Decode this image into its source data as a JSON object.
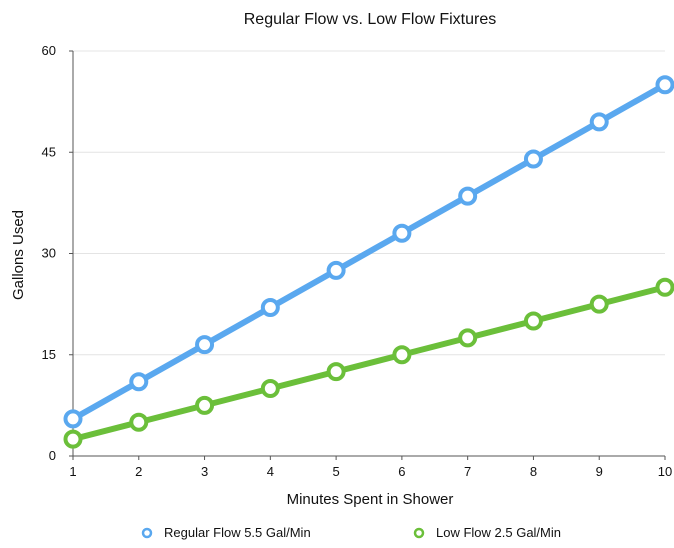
{
  "chart_data": {
    "type": "line",
    "title": "Regular Flow vs. Low Flow Fixtures",
    "xlabel": "Minutes Spent in Shower",
    "ylabel": "Gallons Used",
    "x": [
      1,
      2,
      3,
      4,
      5,
      6,
      7,
      8,
      9,
      10
    ],
    "xlim": [
      1,
      10
    ],
    "ylim": [
      0,
      60
    ],
    "yticks": [
      0,
      15,
      30,
      45,
      60
    ],
    "grid": true,
    "legend_position": "bottom",
    "series": [
      {
        "name": "Regular Flow 5.5 Gal/Min",
        "color": "#5aa8ef",
        "values": [
          5.5,
          11,
          16.5,
          22,
          27.5,
          33,
          38.5,
          44,
          49.5,
          55
        ]
      },
      {
        "name": "Low Flow 2.5 Gal/Min",
        "color": "#6bbf3a",
        "values": [
          2.5,
          5,
          7.5,
          10,
          12.5,
          15,
          17.5,
          20,
          22.5,
          25
        ]
      }
    ]
  }
}
